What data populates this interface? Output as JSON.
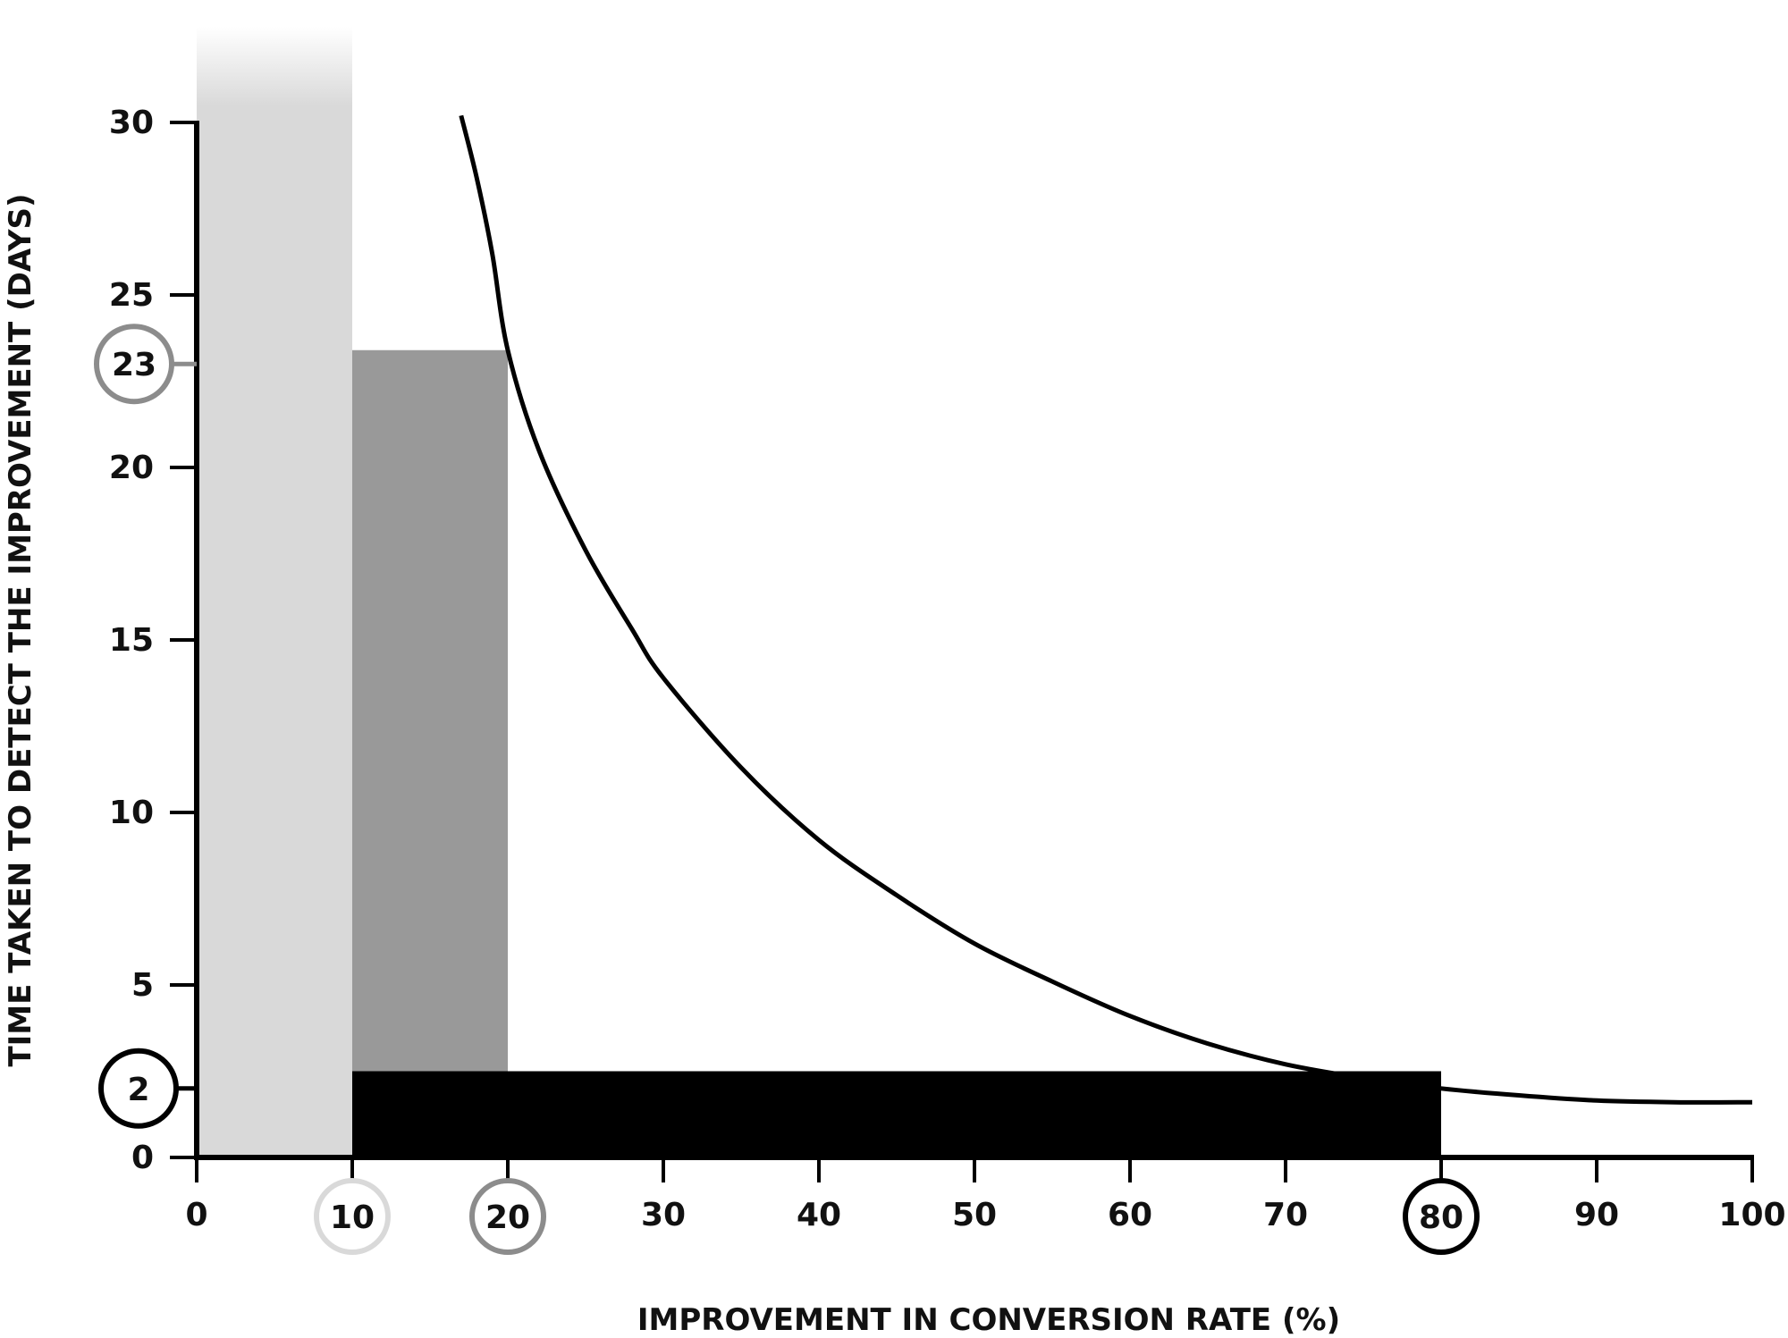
{
  "chart_data": {
    "type": "line",
    "title": "",
    "xlabel": "IMPROVEMENT IN CONVERSION RATE (%)",
    "ylabel": "TIME TAKEN TO DETECT THE IMPROVEMENT (DAYS)",
    "xlim": [
      0,
      100
    ],
    "ylim": [
      0,
      30
    ],
    "x_ticks": [
      0,
      10,
      20,
      30,
      40,
      50,
      60,
      70,
      80,
      90,
      100
    ],
    "y_ticks": [
      0,
      5,
      10,
      15,
      20,
      25,
      30
    ],
    "grid": false,
    "legend": "none",
    "curve": {
      "x": [
        17,
        18,
        19,
        20,
        22,
        25,
        28,
        30,
        35,
        40,
        45,
        50,
        55,
        60,
        65,
        70,
        75,
        80,
        85,
        90,
        95,
        100
      ],
      "y": [
        30.2,
        28.4,
        26.2,
        23.4,
        20.5,
        17.6,
        15.3,
        13.9,
        11.3,
        9.2,
        7.6,
        6.2,
        5.1,
        4.1,
        3.3,
        2.7,
        2.3,
        2.0,
        1.8,
        1.65,
        1.6,
        1.6
      ]
    },
    "regions": [
      {
        "x0": 0,
        "x1": 10,
        "y0": 0,
        "y1": 30,
        "color": "#d9d9d9"
      },
      {
        "x0": 10,
        "x1": 20,
        "y0": 0,
        "y1": 23.4,
        "color": "#999999"
      },
      {
        "x0": 10,
        "x1": 80,
        "y0": 0,
        "y1": 2.5,
        "color": "#000000"
      }
    ],
    "highlighted_x": [
      {
        "value": "10",
        "x": 10,
        "color": "#d9d9d9"
      },
      {
        "value": "20",
        "x": 20,
        "color": "#8c8c8c"
      },
      {
        "value": "80",
        "x": 80,
        "color": "#000000"
      }
    ],
    "highlighted_y": [
      {
        "value": "23",
        "y": 23,
        "color": "#8c8c8c"
      },
      {
        "value": "2",
        "y": 2,
        "color": "#000000"
      }
    ]
  }
}
